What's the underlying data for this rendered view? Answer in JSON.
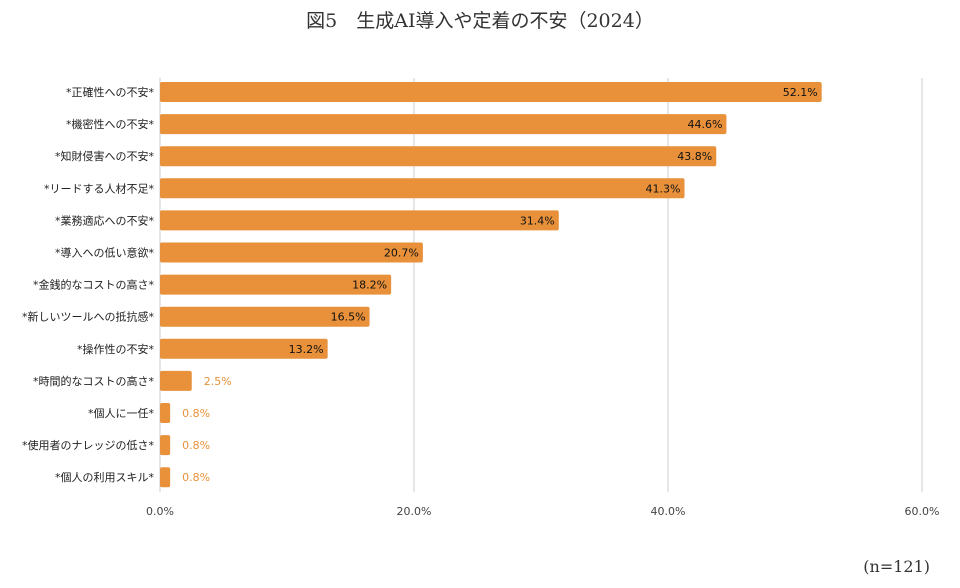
{
  "title": "図5　生成AI導入や定着の不安（2024）",
  "note": "(n=121)",
  "chart_data": {
    "type": "bar",
    "orientation": "horizontal",
    "title": "図5　生成AI導入や定着の不安（2024）",
    "categories": [
      "*正確性への不安*",
      "*機密性への不安*",
      "*知財侵害への不安*",
      "*リードする人材不足*",
      "*業務適応への不安*",
      "*導入への低い意欲*",
      "*金銭的なコストの高さ*",
      "*新しいツールへの抵抗感*",
      "*操作性の不安*",
      "*時間的なコストの高さ*",
      "*個人に一任*",
      "*使用者のナレッジの低さ*",
      "*個人の利用スキル*"
    ],
    "values": [
      52.1,
      44.6,
      43.8,
      41.3,
      31.4,
      20.7,
      18.2,
      16.5,
      13.2,
      2.5,
      0.8,
      0.8,
      0.8
    ],
    "value_labels": [
      "52.1%",
      "44.6%",
      "43.8%",
      "41.3%",
      "31.4%",
      "20.7%",
      "18.2%",
      "16.5%",
      "13.2%",
      "2.5%",
      "0.8%",
      "0.8%",
      "0.8%"
    ],
    "xlim": [
      0,
      60
    ],
    "ticks": [
      0,
      20,
      40,
      60
    ],
    "tick_labels": [
      "0.0%",
      "20.0%",
      "40.0%",
      "60.0%"
    ],
    "bar_color": "#e8913a",
    "grid": true
  }
}
